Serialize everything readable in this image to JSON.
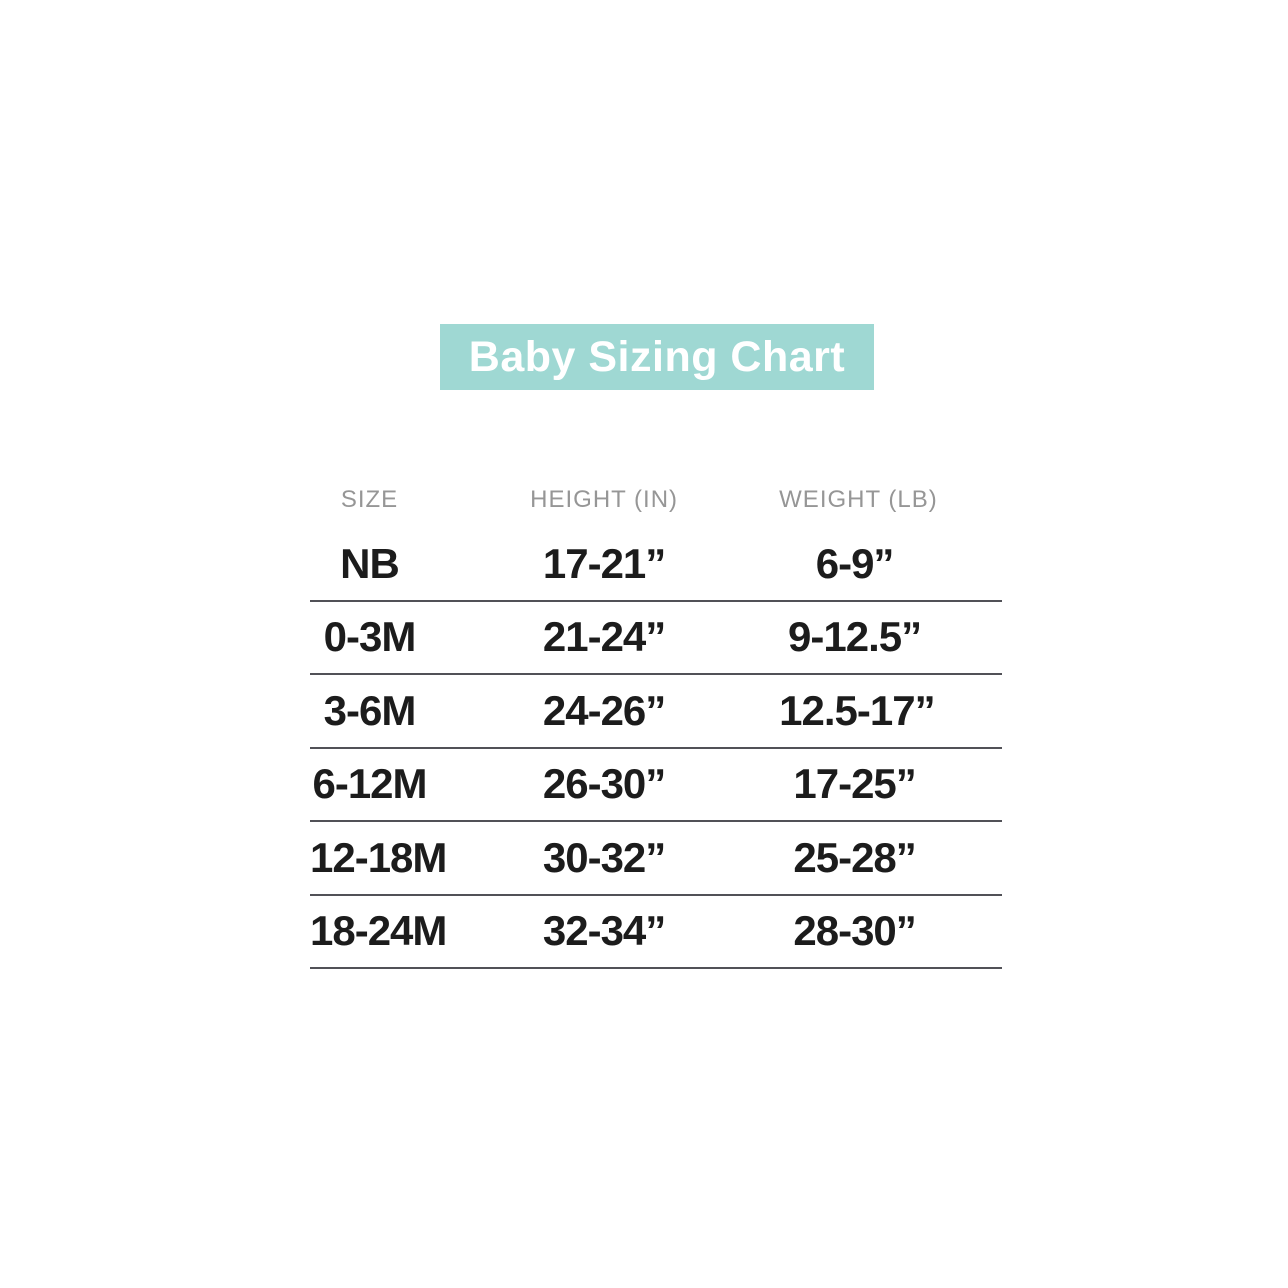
{
  "banner": {
    "title": "Baby Sizing Chart",
    "bg_color": "#9fd8d3",
    "text_color": "#ffffff"
  },
  "chart_data": {
    "type": "table",
    "title": "Baby Sizing Chart",
    "columns": [
      "SIZE",
      "HEIGHT (IN)",
      "WEIGHT (LB)"
    ],
    "rows": [
      [
        "NB",
        "17-21”",
        "6-9”"
      ],
      [
        "0-3M",
        "21-24”",
        "9-12.5”"
      ],
      [
        "3-6M",
        "24-26”",
        "12.5-17”"
      ],
      [
        "6-12M",
        "26-30”",
        "17-25”"
      ],
      [
        "12-18M",
        "30-32”",
        "25-28”"
      ],
      [
        "18-24M",
        "32-34”",
        "28-30”"
      ]
    ],
    "layout": {
      "grid": "horizontal dividers after each data row",
      "divider_color": "#515157",
      "header_text_color": "#969696",
      "cell_text_color": "#1c1c1c"
    }
  }
}
